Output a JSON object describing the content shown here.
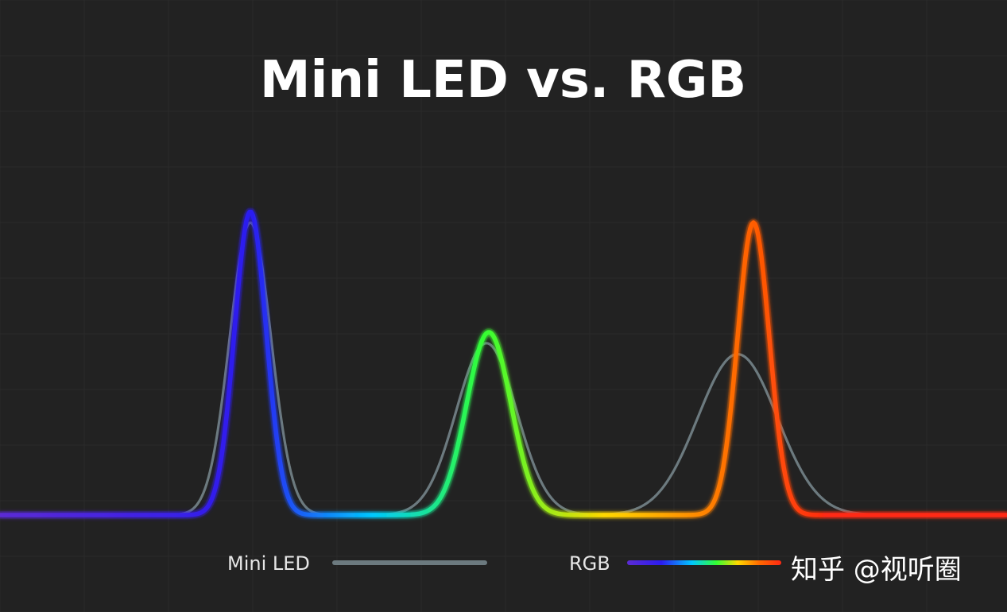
{
  "chart_data": {
    "type": "line",
    "title": "Mini LED vs. RGB",
    "xlabel": "",
    "ylabel": "",
    "x_range": [
      0,
      1267
    ],
    "y_range": [
      0,
      1
    ],
    "grid": true,
    "legend_position": "bottom",
    "series": [
      {
        "name": "Mini LED",
        "color": "#6c7a7f",
        "peaks": [
          {
            "center": 315,
            "height": 0.8,
            "width": 26
          },
          {
            "center": 612,
            "height": 0.47,
            "width": 38
          },
          {
            "center": 928,
            "height": 0.44,
            "width": 50
          }
        ]
      },
      {
        "name": "RGB",
        "gradient": [
          "#5b2bd4",
          "#2b1cf0",
          "#00c8ff",
          "#33ff33",
          "#ffd800",
          "#ff6a00",
          "#ff2a12"
        ],
        "peaks": [
          {
            "center": 315,
            "height": 0.83,
            "width": 20
          },
          {
            "center": 615,
            "height": 0.5,
            "width": 28
          },
          {
            "center": 948,
            "height": 0.8,
            "width": 20
          }
        ]
      }
    ]
  },
  "legend": {
    "mini_led_label": "Mini LED",
    "rgb_label": "RGB"
  },
  "watermark": {
    "text": "知乎 @视听圈"
  }
}
